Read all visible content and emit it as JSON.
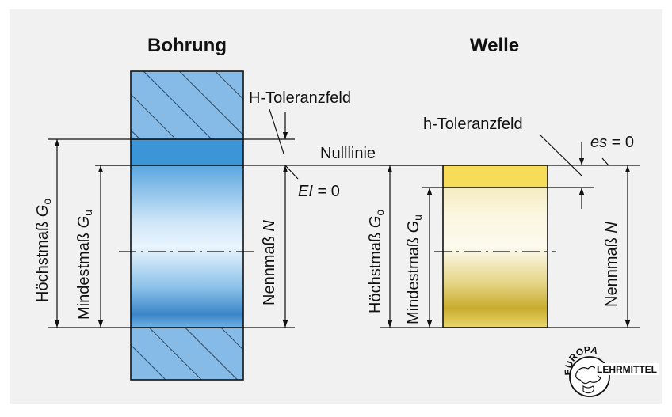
{
  "titles": {
    "bohrung": "Bohrung",
    "welle": "Welle"
  },
  "labels": {
    "h_toleranzfeld_upper": "H-Toleranzfeld",
    "h_toleranzfeld_lower": "h-Toleranzfeld",
    "nulllinie": "Nulllinie",
    "ei_var": "EI",
    "ei_eq": " = 0",
    "es_var": "es",
    "es_eq": " = 0"
  },
  "bohrung_dims": {
    "hoechstmass_text": "Höchstmaß ",
    "hoechstmass_sym": "G",
    "hoechstmass_sub": "o",
    "mindestmass_text": "Mindestmaß ",
    "mindestmass_sym": "G",
    "mindestmass_sub": "u",
    "nennmass_text": "Nennmaß ",
    "nennmass_sym": "N"
  },
  "welle_dims": {
    "hoechstmass_text": "Höchstmaß ",
    "hoechstmass_sym": "G",
    "hoechstmass_sub": "o",
    "mindestmass_text": "Mindestmaß ",
    "mindestmass_sym": "G",
    "mindestmass_sub": "u",
    "nennmass_text": "Nennmaß ",
    "nennmass_sym": "N"
  },
  "logo": {
    "top": "EUROPA",
    "bottom": "LEHRMITTEL"
  },
  "colors": {
    "panel_bg": "#f1f1f1",
    "hatch_fill": "#7fb6e6",
    "tolerance_hole": "#3b95d6",
    "tolerance_shaft": "#f7dc5a",
    "shaft_gold": "#d4b93c"
  }
}
